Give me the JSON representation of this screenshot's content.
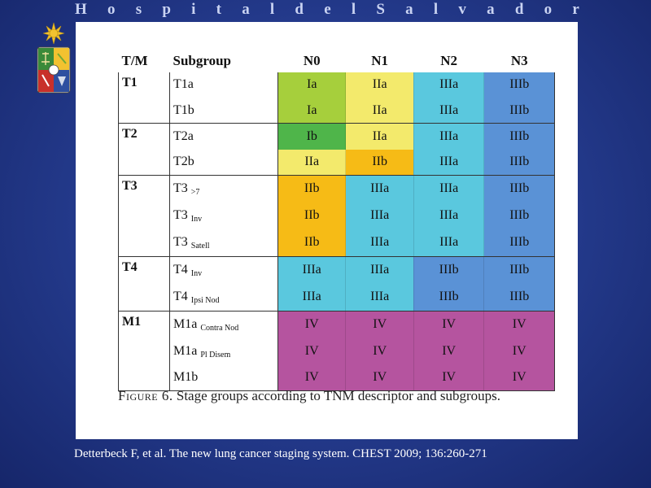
{
  "header": {
    "title_letters": [
      "H",
      "o",
      "s",
      "p",
      "i",
      "t",
      "a",
      "l",
      "d",
      "e",
      "l",
      "S",
      "a",
      "l",
      "v",
      "a",
      "d",
      "o",
      "r"
    ]
  },
  "table": {
    "headers": [
      "T/M",
      "Subgroup",
      "N0",
      "N1",
      "N2",
      "N3"
    ],
    "groups": [
      {
        "label": "T1",
        "rows": [
          {
            "sub": "T1a",
            "suffix": "",
            "cells": [
              "Ia",
              "IIa",
              "IIIa",
              "IIIb"
            ]
          },
          {
            "sub": "T1b",
            "suffix": "",
            "cells": [
              "Ia",
              "IIa",
              "IIIa",
              "IIIb"
            ]
          }
        ]
      },
      {
        "label": "T2",
        "rows": [
          {
            "sub": "T2a",
            "suffix": "",
            "cells": [
              "Ib",
              "IIa",
              "IIIa",
              "IIIb"
            ]
          },
          {
            "sub": "T2b",
            "suffix": "",
            "cells": [
              "IIa",
              "IIb",
              "IIIa",
              "IIIb"
            ]
          }
        ]
      },
      {
        "label": "T3",
        "rows": [
          {
            "sub": "T3",
            "suffix": ">7",
            "cells": [
              "IIb",
              "IIIa",
              "IIIa",
              "IIIb"
            ]
          },
          {
            "sub": "T3",
            "suffix": "Inv",
            "cells": [
              "IIb",
              "IIIa",
              "IIIa",
              "IIIb"
            ]
          },
          {
            "sub": "T3",
            "suffix": "Satell",
            "cells": [
              "IIb",
              "IIIa",
              "IIIa",
              "IIIb"
            ]
          }
        ]
      },
      {
        "label": "T4",
        "rows": [
          {
            "sub": "T4",
            "suffix": "Inv",
            "cells": [
              "IIIa",
              "IIIa",
              "IIIb",
              "IIIb"
            ]
          },
          {
            "sub": "T4",
            "suffix": "Ipsi Nod",
            "cells": [
              "IIIa",
              "IIIa",
              "IIIb",
              "IIIb"
            ]
          }
        ]
      },
      {
        "label": "M1",
        "rows": [
          {
            "sub": "M1a",
            "suffix": "Contra Nod",
            "cells": [
              "IV",
              "IV",
              "IV",
              "IV"
            ]
          },
          {
            "sub": "M1a",
            "suffix": "Pl Disem",
            "cells": [
              "IV",
              "IV",
              "IV",
              "IV"
            ]
          },
          {
            "sub": "M1b",
            "suffix": "",
            "cells": [
              "IV",
              "IV",
              "IV",
              "IV"
            ]
          }
        ]
      }
    ],
    "stage_colors": {
      "Ia": "#a6cf3c",
      "Ib": "#4fb54a",
      "IIa": "#f3ea6c",
      "IIb": "#f6bb16",
      "IIIa": "#5ac8de",
      "IIIb": "#5a92d6",
      "IV": "#b5549f"
    }
  },
  "caption": {
    "figure_label": "Figure 6.",
    "text": "Stage groups according to TNM descriptor and subgroups."
  },
  "citation": "Detterbeck F, et al. The new lung cancer staging system. CHEST 2009; 136:260-271"
}
